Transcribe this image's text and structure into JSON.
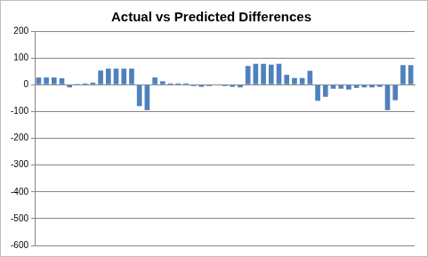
{
  "chart_data": {
    "type": "bar",
    "title": "Actual vs Predicted Differences",
    "categories": [
      null,
      null,
      null,
      null,
      null,
      null,
      null,
      null,
      null,
      null,
      null,
      null,
      null,
      null,
      null,
      null,
      null,
      null,
      null,
      null,
      null,
      null,
      null,
      null,
      null,
      null,
      null,
      null,
      null,
      null,
      null,
      null,
      null,
      null,
      null,
      null,
      null,
      null,
      null,
      null,
      null,
      null,
      null,
      null,
      null,
      null,
      null,
      null,
      null
    ],
    "values": [
      27,
      27,
      27,
      24,
      -10,
      3,
      5,
      8,
      53,
      60,
      60,
      60,
      60,
      -80,
      -95,
      27,
      13,
      5,
      5,
      5,
      -5,
      -8,
      -5,
      0,
      -5,
      -8,
      -10,
      70,
      78,
      78,
      75,
      78,
      37,
      25,
      25,
      52,
      -60,
      -45,
      -15,
      -15,
      -18,
      -12,
      -10,
      -10,
      -8,
      -95,
      -58,
      73,
      73
    ],
    "color": "#4f81bd",
    "ylim": [
      -600,
      200
    ],
    "yticks": [
      -600,
      -500,
      -400,
      -300,
      -200,
      -100,
      0,
      100,
      200
    ],
    "grid": true,
    "tick_labels": "y"
  }
}
